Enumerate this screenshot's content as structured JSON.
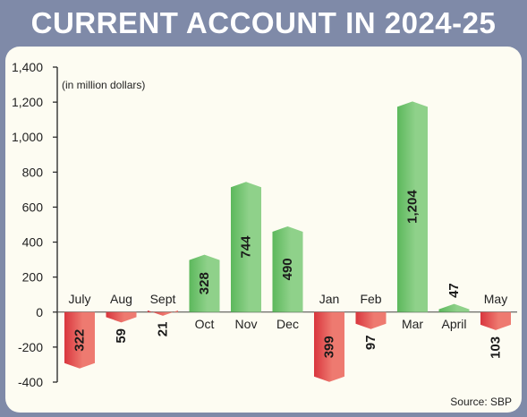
{
  "title": "CURRENT ACCOUNT IN 2024-25",
  "colors": {
    "frame": "#7f8aa8",
    "panel": "#fdfcf2",
    "positive": "#5cb85c",
    "positive_light": "#8fd18a",
    "negative": "#d9363e",
    "negative_light": "#ee7a70"
  },
  "chart_data": {
    "type": "bar",
    "title": "CURRENT ACCOUNT IN 2024-25",
    "unit_note": "(in million dollars)",
    "source": "Source: SBP",
    "categories": [
      "July",
      "Aug",
      "Sept",
      "Oct",
      "Nov",
      "Dec",
      "Jan",
      "Feb",
      "Mar",
      "April",
      "May"
    ],
    "values": [
      -322,
      -59,
      -21,
      328,
      744,
      490,
      -399,
      -97,
      1204,
      47,
      -103
    ],
    "value_labels": [
      "322",
      "59",
      "21",
      "328",
      "744",
      "490",
      "399",
      "97",
      "1,204",
      "47",
      "103"
    ],
    "yticks": [
      -400,
      -200,
      0,
      200,
      400,
      600,
      800,
      1000,
      1200,
      1400
    ],
    "ytick_labels": [
      "-400",
      "-200",
      "0",
      "200",
      "400",
      "600",
      "800",
      "1,000",
      "1,200",
      "1,400"
    ],
    "ylim": [
      -400,
      1400
    ],
    "grid": false,
    "legend": "none"
  }
}
